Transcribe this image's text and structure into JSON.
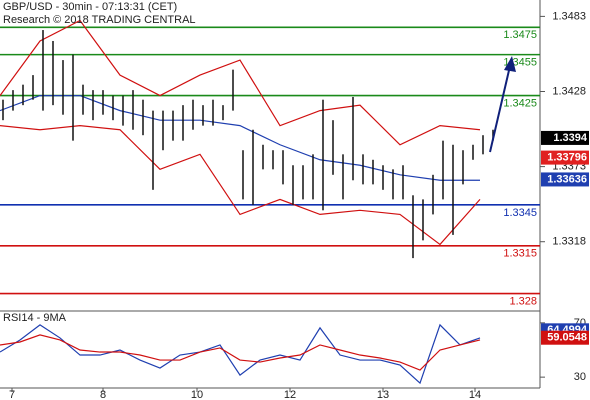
{
  "chart_data": [
    {
      "type": "range_bar",
      "title": "GBP/USD - 30min - 07:13:31 (CET)",
      "subtitle": "Research © 2018 TRADING CENTRAL",
      "xlim": [
        0,
        54
      ],
      "xticks": [
        {
          "value": 1.2,
          "label": "7"
        },
        {
          "value": 10.3,
          "label": "8"
        },
        {
          "value": 19.7,
          "label": "10"
        },
        {
          "value": 29,
          "label": "12"
        },
        {
          "value": 38.3,
          "label": "13"
        },
        {
          "value": 47.5,
          "label": "14"
        }
      ],
      "ylim": [
        1.3268,
        1.3495
      ],
      "yticks": [
        1.3483,
        1.3428,
        1.3373,
        1.3318
      ],
      "x": [
        0.3,
        1.3,
        2.3,
        3.3,
        4.3,
        5.3,
        6.3,
        7.3,
        8.3,
        9.3,
        10.3,
        11.3,
        12.3,
        13.3,
        14.3,
        15.3,
        16.3,
        17.3,
        18.3,
        19.3,
        20.3,
        21.3,
        22.3,
        23.3,
        24.3,
        25.3,
        26.3,
        27.3,
        28.3,
        29.3,
        30.3,
        31.3,
        32.3,
        33.3,
        34.3,
        35.3,
        36.3,
        37.3,
        38.3,
        39.3,
        40.3,
        41.3,
        42.3,
        43.3,
        44.3,
        45.3,
        46.3,
        47.3,
        48.3,
        49.3
      ],
      "high": [
        1.3422,
        1.3429,
        1.3433,
        1.344,
        1.3473,
        1.3465,
        1.3451,
        1.3455,
        1.3433,
        1.3429,
        1.3429,
        1.3425,
        1.3425,
        1.3429,
        1.3422,
        1.3414,
        1.3414,
        1.3414,
        1.3418,
        1.3422,
        1.3418,
        1.3422,
        1.3418,
        1.3444,
        1.3385,
        1.34,
        1.3389,
        1.3385,
        1.3385,
        1.3374,
        1.3374,
        1.3382,
        1.3422,
        1.3407,
        1.3382,
        1.3424,
        1.3382,
        1.3378,
        1.3374,
        1.3371,
        1.3374,
        1.3352,
        1.3349,
        1.3367,
        1.3392,
        1.3389,
        1.3385,
        1.3389,
        1.3396,
        1.34
      ],
      "low": [
        1.3407,
        1.3414,
        1.3418,
        1.3422,
        1.3414,
        1.3418,
        1.3411,
        1.3392,
        1.3411,
        1.3407,
        1.3411,
        1.3407,
        1.3403,
        1.34,
        1.3396,
        1.3356,
        1.3385,
        1.3392,
        1.3392,
        1.34,
        1.3403,
        1.3403,
        1.3407,
        1.3414,
        1.3349,
        1.3345,
        1.3371,
        1.3371,
        1.336,
        1.3345,
        1.3349,
        1.3349,
        1.3341,
        1.3367,
        1.3349,
        1.3363,
        1.336,
        1.336,
        1.3356,
        1.3349,
        1.3349,
        1.3306,
        1.3319,
        1.3338,
        1.3349,
        1.3323,
        1.336,
        1.3378,
        1.3382,
        1.3392
      ],
      "bar_color": "#111111",
      "bands": {
        "x": [
          0,
          4,
          8,
          12,
          16,
          20,
          24,
          28,
          32,
          36,
          40,
          44,
          48
        ],
        "upper": [
          1.3425,
          1.3465,
          1.348,
          1.344,
          1.3425,
          1.344,
          1.3451,
          1.3403,
          1.3414,
          1.3418,
          1.3389,
          1.3403,
          1.34
        ],
        "lower": [
          1.3403,
          1.34,
          1.3403,
          1.34,
          1.3371,
          1.3382,
          1.3338,
          1.3349,
          1.3338,
          1.3341,
          1.3338,
          1.3316,
          1.3349
        ],
        "middle": [
          1.3414,
          1.3425,
          1.3425,
          1.3414,
          1.3407,
          1.3407,
          1.3403,
          1.3389,
          1.3378,
          1.3374,
          1.3367,
          1.3363,
          1.3363
        ],
        "band_color": "#d01010",
        "middle_color": "#1f3fb0"
      },
      "levels": [
        {
          "value": 1.3475,
          "color": "#1a8a1a"
        },
        {
          "value": 1.3455,
          "color": "#1a8a1a"
        },
        {
          "value": 1.3425,
          "color": "#1a8a1a"
        },
        {
          "value": 1.3345,
          "color": "#1030b0"
        },
        {
          "value": 1.3315,
          "color": "#d01010"
        },
        {
          "value": 1.328,
          "color": "#d01010"
        }
      ],
      "price_tags": [
        {
          "value": 1.3394,
          "color": "#000000"
        },
        {
          "value": 1.33796,
          "color": "#e02020"
        },
        {
          "value": 1.33636,
          "color": "#1f3fb0"
        }
      ]
    },
    {
      "type": "line",
      "title": "RSI14 - 9MA",
      "xlim": [
        0,
        54
      ],
      "ylim": [
        22,
        78
      ],
      "yticks": [
        70,
        30
      ],
      "x": [
        0,
        2,
        4,
        6,
        8,
        10,
        12,
        14,
        16,
        18,
        20,
        22,
        24,
        26,
        28,
        30,
        32,
        34,
        36,
        38,
        40,
        42,
        44,
        46,
        48
      ],
      "series": [
        {
          "color": "#1f3fb0",
          "values": [
            48.5,
            57.4,
            68.5,
            58.9,
            46.3,
            46.3,
            50,
            42.6,
            36.7,
            46.3,
            48.5,
            53.7,
            31.5,
            42.6,
            46.3,
            42.6,
            66.3,
            46.3,
            42.6,
            42.6,
            38.9,
            25.6,
            68.5,
            53.7,
            58.9
          ]
        },
        {
          "color": "#d01010",
          "values": [
            53.7,
            55.9,
            61.1,
            57.4,
            50,
            48.5,
            48.5,
            46.3,
            42.6,
            42.6,
            48.5,
            51.5,
            42.6,
            41.1,
            44.1,
            46.3,
            53.7,
            50,
            46.3,
            44.1,
            41.1,
            35.2,
            50,
            53.7,
            57.4
          ]
        }
      ],
      "price_tags": [
        {
          "value": 64.4994,
          "color": "#1f3fb0"
        },
        {
          "value": 59.0548,
          "color": "#d01010"
        }
      ]
    }
  ]
}
